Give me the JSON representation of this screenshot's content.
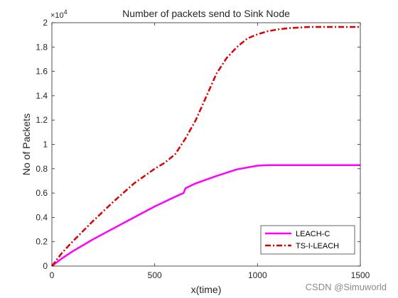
{
  "chart_data": {
    "type": "line",
    "title": "Number of packets send to Sink Node",
    "xlabel": "x(time)",
    "ylabel": "No of Packets",
    "xlim": [
      0,
      1500
    ],
    "ylim": [
      0,
      20000
    ],
    "y_exponent_label": "×10",
    "y_exponent_power": "4",
    "xticks": [
      0,
      500,
      1000,
      1500
    ],
    "xtick_labels": [
      "0",
      "500",
      "1000",
      "1500"
    ],
    "yticks": [
      0,
      2000,
      4000,
      6000,
      8000,
      10000,
      12000,
      14000,
      16000,
      18000,
      20000
    ],
    "ytick_labels": [
      "0",
      "0.2",
      "0.4",
      "0.6",
      "0.8",
      "1",
      "1.2",
      "1.4",
      "1.6",
      "1.8",
      "2"
    ],
    "grid": false,
    "legend_position": "bottom-right",
    "series": [
      {
        "name": "LEACH-C",
        "color": "#ff00ff",
        "style": "solid",
        "x": [
          0,
          50,
          100,
          200,
          300,
          400,
          500,
          600,
          640,
          650,
          700,
          800,
          900,
          1000,
          1050,
          1100,
          1200,
          1300,
          1400,
          1500
        ],
        "y": [
          0,
          650,
          1200,
          2200,
          3100,
          4000,
          4900,
          5700,
          6000,
          6400,
          6800,
          7400,
          7950,
          8250,
          8300,
          8300,
          8300,
          8300,
          8300,
          8300
        ]
      },
      {
        "name": "TS-I-LEACH",
        "color": "#dd0000",
        "style": "dashdot",
        "x": [
          0,
          50,
          100,
          200,
          300,
          400,
          500,
          550,
          600,
          650,
          700,
          750,
          800,
          850,
          900,
          950,
          1000,
          1050,
          1100,
          1150,
          1200,
          1250,
          1300,
          1400,
          1500
        ],
        "y": [
          0,
          1100,
          2000,
          3700,
          5300,
          6800,
          8000,
          8500,
          9200,
          10500,
          12000,
          13900,
          15800,
          17100,
          18000,
          18700,
          19050,
          19300,
          19450,
          19550,
          19600,
          19650,
          19650,
          19650,
          19650
        ]
      }
    ]
  },
  "watermark": "CSDN @Simuworld"
}
